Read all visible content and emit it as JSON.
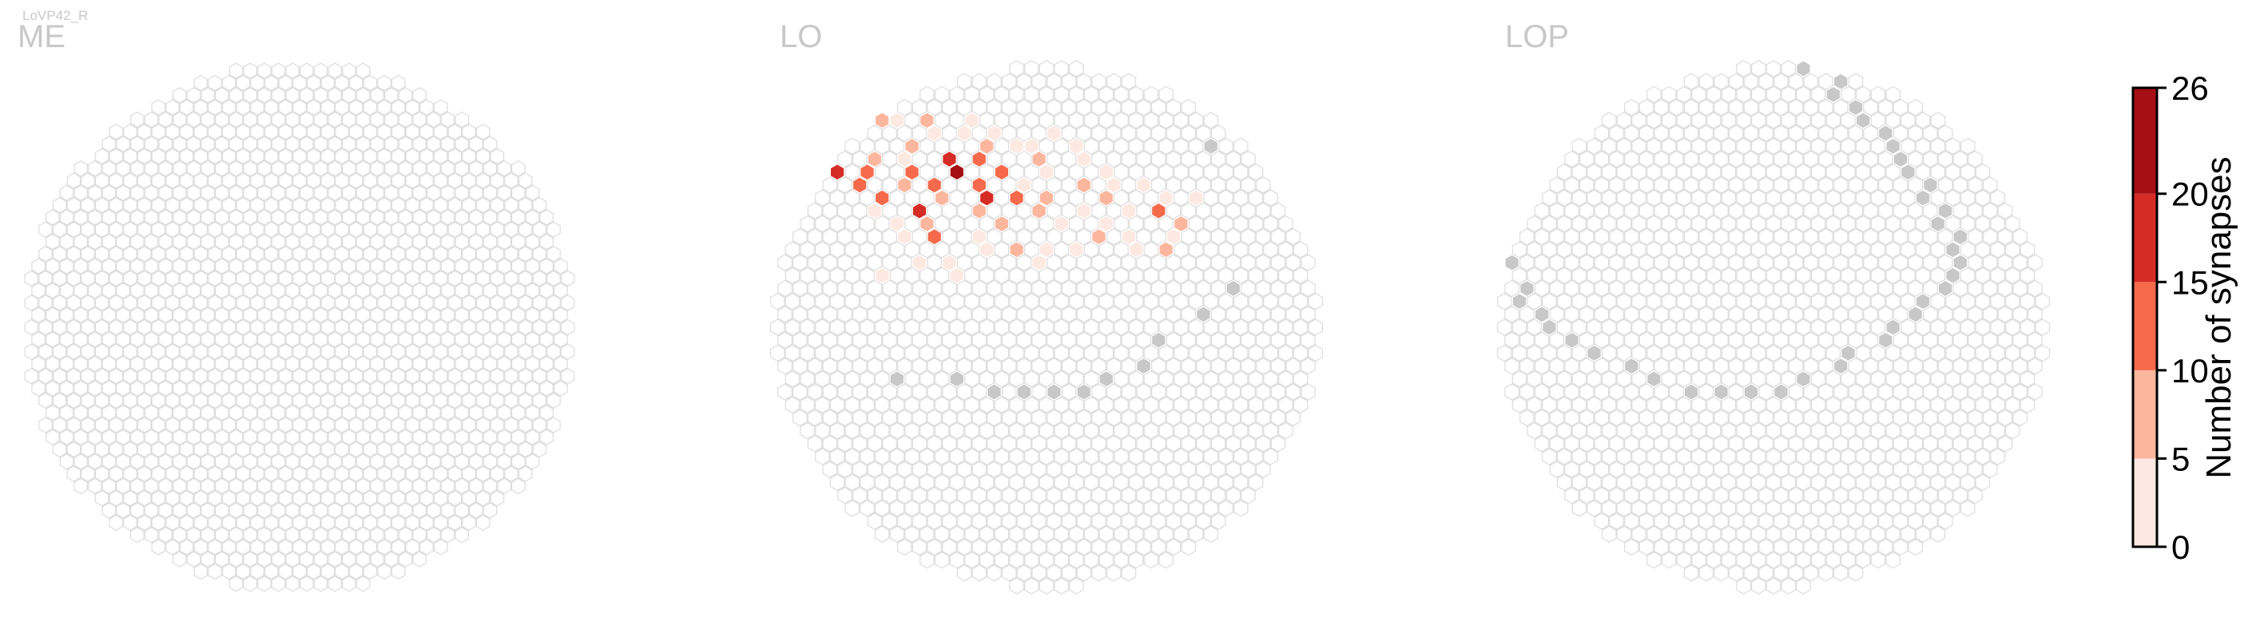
{
  "cell_type": "LoVP42_R",
  "colors": {
    "empty_fill": "#ffffff",
    "empty_stroke": "#dcdcdc",
    "out_of_layer": "#c8c8c8",
    "bins": [
      "#fde9e1",
      "#fbb69d",
      "#f66a4b",
      "#d62c26",
      "#a50f15"
    ]
  },
  "chart_data": {
    "type": "heatmap",
    "panels": [
      {
        "title": "ME",
        "rows": 19,
        "cols": 37,
        "hot": [],
        "gray": []
      },
      {
        "title": "LO",
        "rows": 17,
        "cols": 33,
        "hot": [
          [
            5,
            7,
            1
          ],
          [
            6,
            9,
            2
          ],
          [
            7,
            7,
            3
          ],
          [
            6,
            10,
            1
          ],
          [
            8,
            11,
            2
          ],
          [
            10,
            6,
            4
          ],
          [
            10,
            8,
            3
          ],
          [
            11,
            10,
            2
          ],
          [
            12,
            9,
            3
          ],
          [
            7,
            12,
            1
          ],
          [
            9,
            13,
            4
          ],
          [
            10,
            14,
            5
          ],
          [
            11,
            12,
            3
          ],
          [
            12,
            13,
            2
          ],
          [
            13,
            11,
            4
          ],
          [
            9,
            15,
            3
          ],
          [
            8,
            16,
            2
          ],
          [
            11,
            15,
            3
          ],
          [
            12,
            16,
            4
          ],
          [
            13,
            15,
            2
          ],
          [
            10,
            17,
            3
          ],
          [
            8,
            18,
            1
          ],
          [
            12,
            18,
            3
          ],
          [
            14,
            17,
            2
          ],
          [
            15,
            15,
            1
          ],
          [
            9,
            8,
            2
          ],
          [
            11,
            7,
            3
          ],
          [
            13,
            8,
            1
          ],
          [
            7,
            14,
            1
          ],
          [
            6,
            15,
            1
          ],
          [
            14,
            12,
            2
          ],
          [
            15,
            10,
            1
          ],
          [
            10,
            20,
            1
          ],
          [
            12,
            20,
            2
          ],
          [
            9,
            22,
            1
          ],
          [
            11,
            22,
            2
          ],
          [
            13,
            22,
            1
          ],
          [
            16,
            20,
            1
          ],
          [
            16,
            18,
            2
          ],
          [
            7,
            20,
            1
          ],
          [
            8,
            22,
            1
          ],
          [
            10,
            24,
            1
          ],
          [
            12,
            24,
            2
          ],
          [
            14,
            24,
            1
          ],
          [
            11,
            26,
            1
          ],
          [
            13,
            27,
            3
          ],
          [
            14,
            29,
            2
          ],
          [
            12,
            30,
            1
          ],
          [
            15,
            28,
            1
          ],
          [
            16,
            28,
            2
          ],
          [
            15,
            25,
            1
          ],
          [
            14,
            21,
            1
          ],
          [
            16,
            16,
            1
          ],
          [
            17,
            13,
            1
          ],
          [
            17,
            11,
            1
          ],
          [
            18,
            9,
            1
          ],
          [
            18,
            14,
            1
          ],
          [
            11,
            18,
            1
          ],
          [
            13,
            19,
            2
          ],
          [
            9,
            10,
            1
          ],
          [
            7,
            16,
            1
          ],
          [
            15,
            12,
            3
          ],
          [
            6,
            12,
            2
          ],
          [
            14,
            10,
            1
          ],
          [
            15,
            23,
            2
          ],
          [
            12,
            28,
            1
          ],
          [
            16,
            26,
            1
          ],
          [
            13,
            25,
            1
          ],
          [
            11,
            24,
            1
          ],
          [
            8,
            19,
            1
          ],
          [
            16,
            22,
            1
          ],
          [
            17,
            19,
            1
          ],
          [
            9,
            19,
            2
          ],
          [
            10,
            11,
            3
          ]
        ],
        "gray": [
          [
            0,
            22
          ],
          [
            1,
            24
          ],
          [
            4,
            3
          ],
          [
            3,
            5
          ],
          [
            7,
            1
          ],
          [
            14,
            0
          ],
          [
            18,
            1
          ],
          [
            19,
            32
          ],
          [
            21,
            30
          ],
          [
            23,
            27
          ],
          [
            25,
            26
          ],
          [
            26,
            10
          ],
          [
            26,
            14
          ],
          [
            27,
            16
          ],
          [
            27,
            18
          ],
          [
            27,
            20
          ],
          [
            27,
            22
          ],
          [
            26,
            24
          ],
          [
            8,
            31
          ]
        ]
      },
      {
        "title": "LOP",
        "rows": 17,
        "cols": 33,
        "hot": [],
        "gray": [
          [
            1,
            20
          ],
          [
            1,
            13
          ],
          [
            2,
            12
          ],
          [
            2,
            22
          ],
          [
            4,
            8
          ],
          [
            5,
            7
          ],
          [
            6,
            6
          ],
          [
            7,
            5
          ],
          [
            8,
            4
          ],
          [
            9,
            3
          ],
          [
            10,
            2
          ],
          [
            11,
            2
          ],
          [
            12,
            1
          ],
          [
            13,
            1
          ],
          [
            14,
            1
          ],
          [
            15,
            1
          ],
          [
            16,
            1
          ],
          [
            17,
            2
          ],
          [
            18,
            2
          ],
          [
            19,
            3
          ],
          [
            20,
            3
          ],
          [
            21,
            4
          ],
          [
            22,
            5
          ],
          [
            23,
            6
          ],
          [
            24,
            8
          ],
          [
            25,
            10
          ],
          [
            26,
            12
          ],
          [
            27,
            14
          ],
          [
            27,
            16
          ],
          [
            27,
            18
          ],
          [
            27,
            20
          ],
          [
            26,
            22
          ],
          [
            25,
            24
          ],
          [
            24,
            25
          ],
          [
            23,
            27
          ],
          [
            22,
            28
          ],
          [
            21,
            29
          ],
          [
            20,
            30
          ],
          [
            19,
            31
          ],
          [
            18,
            32
          ],
          [
            17,
            32
          ],
          [
            16,
            32
          ],
          [
            15,
            32
          ],
          [
            14,
            31
          ],
          [
            13,
            31
          ],
          [
            12,
            30
          ],
          [
            11,
            30
          ],
          [
            10,
            29
          ],
          [
            9,
            28
          ],
          [
            8,
            28
          ],
          [
            7,
            27
          ],
          [
            6,
            26
          ],
          [
            5,
            25
          ],
          [
            4,
            24
          ],
          [
            3,
            24
          ],
          [
            2,
            23
          ]
        ]
      }
    ],
    "colorbar": {
      "label": "Number of synapses",
      "ticks": [
        "0",
        "5",
        "10",
        "15",
        "20",
        "26"
      ],
      "boundaries": [
        0,
        5,
        10,
        15,
        20,
        26
      ]
    }
  }
}
